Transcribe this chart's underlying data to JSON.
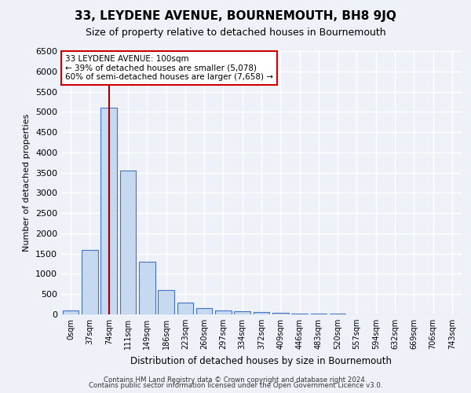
{
  "title": "33, LEYDENE AVENUE, BOURNEMOUTH, BH8 9JQ",
  "subtitle": "Size of property relative to detached houses in Bournemouth",
  "xlabel": "Distribution of detached houses by size in Bournemouth",
  "ylabel": "Number of detached properties",
  "bin_labels": [
    "0sqm",
    "37sqm",
    "74sqm",
    "111sqm",
    "149sqm",
    "186sqm",
    "223sqm",
    "260sqm",
    "297sqm",
    "334sqm",
    "372sqm",
    "409sqm",
    "446sqm",
    "483sqm",
    "520sqm",
    "557sqm",
    "594sqm",
    "632sqm",
    "669sqm",
    "706sqm",
    "743sqm"
  ],
  "bar_heights": [
    100,
    1600,
    5100,
    3550,
    1300,
    600,
    300,
    150,
    100,
    75,
    50,
    30,
    20,
    15,
    10,
    8,
    5,
    3,
    2,
    1,
    0
  ],
  "bar_color": "#c6d9f0",
  "bar_edge_color": "#4472c4",
  "property_bin_index": 2,
  "vline_color": "#990000",
  "annotation_text": "33 LEYDENE AVENUE: 100sqm\n← 39% of detached houses are smaller (5,078)\n60% of semi-detached houses are larger (7,658) →",
  "annotation_box_color": "#ffffff",
  "annotation_box_edge": "#cc0000",
  "ylim": [
    0,
    6500
  ],
  "yticks": [
    0,
    500,
    1000,
    1500,
    2000,
    2500,
    3000,
    3500,
    4000,
    4500,
    5000,
    5500,
    6000,
    6500
  ],
  "background_color": "#eef2f8",
  "grid_color": "#ffffff",
  "footer_line1": "Contains HM Land Registry data © Crown copyright and database right 2024.",
  "footer_line2": "Contains public sector information licensed under the Open Government Licence v3.0."
}
